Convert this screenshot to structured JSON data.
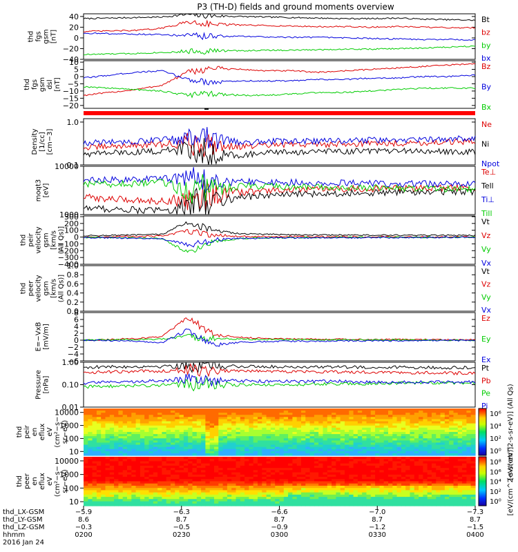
{
  "chart_data": {
    "title": "P3 (TH-D) fields and ground moments overview",
    "type": "line",
    "panels": [
      {
        "id": "fgs-gsm",
        "ylabel": [
          "thd",
          "fgs",
          "gsm",
          "[nT]"
        ],
        "ylim": [
          -40,
          45
        ],
        "ticks": [
          {
            "v": 40,
            "label": "40"
          },
          {
            "v": 20,
            "label": "20"
          },
          {
            "v": 0,
            "label": "0"
          },
          {
            "v": -20,
            "label": "−20"
          },
          {
            "v": -40,
            "label": "−40"
          }
        ],
        "series": [
          {
            "name": "Bt",
            "color": "#000000",
            "values": [
              36,
              37,
              38,
              39,
              44,
              41,
              40,
              39,
              38,
              37,
              36,
              36,
              37,
              35,
              34,
              33
            ]
          },
          {
            "name": "bz",
            "color": "#dd0000",
            "values": [
              12,
              13,
              14,
              18,
              30,
              26,
              24,
              23,
              22,
              21,
              21,
              20,
              21,
              20,
              19,
              19
            ]
          },
          {
            "name": "by",
            "color": "#00cc00",
            "values": [
              -31,
              -30,
              -29,
              -27,
              -25,
              -24,
              -24,
              -23,
              -23,
              -22,
              -21,
              -21,
              -20,
              -19,
              -17,
              -15
            ]
          },
          {
            "name": "bx",
            "color": "#0000dd",
            "values": [
              9,
              8,
              7,
              6,
              4,
              3,
              3,
              2,
              1,
              1,
              0,
              -1,
              -2,
              -3,
              -3,
              -4
            ]
          }
        ]
      },
      {
        "id": "fgs-dsl",
        "ylabel": [
          "thd",
          "fgs",
          "gsm",
          "dsl",
          "[nT]"
        ],
        "ylim": [
          -22,
          11
        ],
        "ticks": [
          {
            "v": 10,
            "label": "10"
          },
          {
            "v": 5,
            "label": "5"
          },
          {
            "v": 0,
            "label": "0"
          },
          {
            "v": -5,
            "label": "−5"
          },
          {
            "v": -10,
            "label": "−10"
          },
          {
            "v": -15,
            "label": "−15"
          },
          {
            "v": -20,
            "label": "−20"
          }
        ],
        "series": [
          {
            "name": "Bz",
            "color": "#dd0000",
            "values": [
              -13,
              -11,
              -9,
              -6,
              3,
              6,
              5,
              4,
              4,
              3,
              4,
              5,
              6,
              7,
              8,
              9
            ]
          },
          {
            "name": "By",
            "color": "#0000dd",
            "values": [
              -1,
              1,
              3,
              4,
              -2,
              -4,
              -3,
              -3,
              -3,
              -2,
              -2,
              -1,
              -1,
              0,
              0,
              1
            ]
          },
          {
            "name": "Bx",
            "color": "#00cc00",
            "values": [
              -7,
              -8,
              -9,
              -10,
              -13,
              -12,
              -13,
              -13,
              -12,
              -11,
              -11,
              -10,
              -9,
              -8,
              -8,
              -8
            ]
          }
        ]
      },
      {
        "id": "density",
        "ylabel": [
          "Density",
          "[1/cc]",
          "[cm−3]"
        ],
        "scale": "log",
        "ylim": [
          0.1,
          1.2
        ],
        "ticks": [
          {
            "v": 1.0,
            "label": "1.0"
          },
          {
            "v": 0.1,
            "label": "0.1"
          }
        ],
        "series": [
          {
            "name": "Ne",
            "color": "#dd0000",
            "values": [
              0.25,
              0.27,
              0.29,
              0.3,
              0.33,
              0.3,
              0.27,
              0.28,
              0.3,
              0.3,
              0.31,
              0.32,
              0.32,
              0.33,
              0.34,
              0.35
            ]
          },
          {
            "name": "Ni",
            "color": "#000000",
            "values": [
              0.18,
              0.19,
              0.2,
              0.21,
              0.24,
              0.18,
              0.17,
              0.19,
              0.2,
              0.2,
              0.21,
              0.21,
              0.21,
              0.21,
              0.2,
              0.2
            ]
          },
          {
            "name": "Npot",
            "color": "#0000dd",
            "values": [
              0.32,
              0.34,
              0.36,
              0.38,
              0.4,
              0.37,
              0.34,
              0.35,
              0.36,
              0.36,
              0.37,
              0.38,
              0.38,
              0.39,
              0.4,
              0.42
            ]
          }
        ]
      },
      {
        "id": "temperature",
        "ylabel": [
          "moqt3",
          "[eV]"
        ],
        "scale": "log",
        "ylim": [
          1000,
          10000
        ],
        "ticks": [
          {
            "v": 10000,
            "label": "10000"
          },
          {
            "v": 1000,
            "label": "1000"
          }
        ],
        "series": [
          {
            "name": "Te⊥",
            "color": "#dd0000",
            "values": [
              2300,
              2100,
              2000,
              1900,
              2100,
              2600,
              2900,
              3100,
              3200,
              3300,
              3400,
              3400,
              3500,
              3500,
              3600,
              3600
            ]
          },
          {
            "name": "Tell",
            "color": "#000000",
            "values": [
              1400,
              1300,
              1250,
              1200,
              1500,
              2000,
              2300,
              2500,
              2600,
              2700,
              2800,
              2800,
              2900,
              2900,
              3000,
              3000
            ]
          },
          {
            "name": "Ti⊥",
            "color": "#0000dd",
            "values": [
              5000,
              5200,
              5400,
              5600,
              5800,
              5200,
              4800,
              4700,
              4600,
              4500,
              4500,
              4400,
              4400,
              4300,
              4300,
              4200
            ]
          },
          {
            "name": "Till",
            "color": "#00cc00",
            "values": [
              4200,
              4300,
              4400,
              4600,
              3000,
              3600,
              3900,
              3800,
              3700,
              3700,
              3600,
              3600,
              3500,
              3500,
              3400,
              3400
            ]
          }
        ]
      },
      {
        "id": "ion-velocity",
        "ylabel": [
          "thd",
          "peir",
          "velocity",
          "gsm",
          "[km/s",
          "(All Qs)]"
        ],
        "ylim": [
          -400,
          310
        ],
        "ticks": [
          {
            "v": 300,
            "label": "300"
          },
          {
            "v": 200,
            "label": "200"
          },
          {
            "v": 100,
            "label": "100"
          },
          {
            "v": 0,
            "label": "0"
          },
          {
            "v": -100,
            "label": "−100"
          },
          {
            "v": -200,
            "label": "−200"
          },
          {
            "v": -300,
            "label": "−300"
          },
          {
            "v": -400,
            "label": "−400"
          }
        ],
        "series": [
          {
            "name": "Vt",
            "color": "#000000",
            "values": [
              20,
              25,
              30,
              40,
              220,
              90,
              50,
              40,
              35,
              30,
              30,
              28,
              26,
              25,
              25,
              24
            ]
          },
          {
            "name": "Vz",
            "color": "#dd0000",
            "values": [
              0,
              5,
              10,
              15,
              90,
              30,
              10,
              5,
              5,
              5,
              3,
              3,
              2,
              2,
              2,
              2
            ]
          },
          {
            "name": "Vy",
            "color": "#00cc00",
            "values": [
              -5,
              -8,
              -10,
              -20,
              -230,
              -60,
              -20,
              -10,
              -8,
              -6,
              -5,
              -5,
              -4,
              -4,
              -3,
              -3
            ]
          },
          {
            "name": "Vx",
            "color": "#0000dd",
            "values": [
              -10,
              -12,
              -15,
              -25,
              -120,
              -40,
              -20,
              -15,
              -12,
              -10,
              -10,
              -8,
              -8,
              -6,
              -6,
              -5
            ]
          }
        ]
      },
      {
        "id": "electron-velocity",
        "ylabel": [
          "thd",
          "peer",
          "velocity",
          "gsm",
          "[km/s",
          "(All Qs)]"
        ],
        "ylim": [
          0,
          1.0
        ],
        "ticks": [
          {
            "v": 1.0,
            "label": "1.0"
          },
          {
            "v": 0.8,
            "label": "0.8"
          },
          {
            "v": 0.6,
            "label": "0.6"
          },
          {
            "v": 0.4,
            "label": "0.4"
          },
          {
            "v": 0.2,
            "label": "0.2"
          },
          {
            "v": 0.0,
            "label": "0.0"
          }
        ],
        "series": [
          {
            "name": "Vt",
            "color": "#000000",
            "values": []
          },
          {
            "name": "Vz",
            "color": "#dd0000",
            "values": []
          },
          {
            "name": "Vy",
            "color": "#00cc00",
            "values": []
          },
          {
            "name": "Vx",
            "color": "#0000dd",
            "values": []
          }
        ]
      },
      {
        "id": "efield",
        "ylabel": [
          "E=−VxB",
          "[mV/m]"
        ],
        "ylim": [
          -6,
          8
        ],
        "ticks": [
          {
            "v": 8,
            "label": "8"
          },
          {
            "v": 6,
            "label": "6"
          },
          {
            "v": 4,
            "label": "4"
          },
          {
            "v": 2,
            "label": "2"
          },
          {
            "v": 0,
            "label": "0"
          },
          {
            "v": -2,
            "label": "−2"
          },
          {
            "v": -4,
            "label": "−4"
          },
          {
            "v": -6,
            "label": "−6"
          }
        ],
        "series": [
          {
            "name": "Ez",
            "color": "#dd0000",
            "values": [
              0,
              0.2,
              0.5,
              1.0,
              6.5,
              1.5,
              0.8,
              0.5,
              0.4,
              0.3,
              0.3,
              0.2,
              0.2,
              0.2,
              0.1,
              0.1
            ]
          },
          {
            "name": "Ey",
            "color": "#00cc00",
            "values": [
              0,
              0.1,
              0.2,
              0.3,
              1.0,
              0.5,
              0.3,
              0.2,
              0.2,
              0.1,
              0.1,
              0.1,
              0.1,
              0.0,
              0.0,
              0.0
            ]
          },
          {
            "name": "Ex",
            "color": "#0000dd",
            "values": [
              0,
              -0.1,
              -0.3,
              -0.8,
              3.0,
              -1.5,
              -0.6,
              -0.4,
              -0.3,
              -0.3,
              -0.2,
              -0.2,
              -0.2,
              -0.1,
              -0.1,
              -0.1
            ]
          }
        ]
      },
      {
        "id": "pressure",
        "ylabel": [
          "Pressure",
          "[nPa]"
        ],
        "scale": "log",
        "ylim": [
          0.01,
          1.0
        ],
        "ticks": [
          {
            "v": 1.0,
            "label": "1.00"
          },
          {
            "v": 0.1,
            "label": "0.10"
          },
          {
            "v": 0.01,
            "label": "0.01"
          }
        ],
        "series": [
          {
            "name": "Pt",
            "color": "#000000",
            "values": [
              0.6,
              0.62,
              0.64,
              0.66,
              0.7,
              0.67,
              0.65,
              0.64,
              0.63,
              0.62,
              0.61,
              0.6,
              0.6,
              0.59,
              0.58,
              0.57
            ]
          },
          {
            "name": "Pb",
            "color": "#dd0000",
            "values": [
              0.35,
              0.37,
              0.39,
              0.41,
              0.5,
              0.44,
              0.42,
              0.4,
              0.39,
              0.38,
              0.37,
              0.36,
              0.35,
              0.34,
              0.33,
              0.32
            ]
          },
          {
            "name": "Pe",
            "color": "#00cc00",
            "values": [
              0.08,
              0.085,
              0.09,
              0.095,
              0.11,
              0.1,
              0.1,
              0.1,
              0.1,
              0.11,
              0.11,
              0.11,
              0.12,
              0.12,
              0.12,
              0.12
            ]
          },
          {
            "name": "Pi",
            "color": "#0000dd",
            "values": [
              0.12,
              0.13,
              0.14,
              0.15,
              0.18,
              0.16,
              0.15,
              0.14,
              0.14,
              0.14,
              0.14,
              0.13,
              0.13,
              0.13,
              0.13,
              0.13
            ]
          }
        ]
      },
      {
        "id": "ion-eflux",
        "type": "heatmap",
        "ylabel": [
          "thd",
          "peir",
          "en",
          "eflux",
          "eV",
          "(cm²−s−",
          "sr−eV)"
        ],
        "ticks": [
          {
            "v": 10000,
            "label": "10000"
          },
          {
            "v": 1000,
            "label": "1000"
          },
          {
            "v": 100,
            "label": "100"
          },
          {
            "v": 10,
            "label": "10"
          }
        ],
        "colorbar_label": "[eV/(cm^2-s-sr-eV)] (All Qs)",
        "colorbar_ticks": [
          "10⁶",
          "10⁴",
          "10²",
          "10⁰"
        ]
      },
      {
        "id": "electron-eflux",
        "type": "heatmap",
        "ylabel": [
          "thd",
          "peer",
          "en",
          "eflux",
          "eV",
          "(cm²−s−",
          "sr−eV)"
        ],
        "ticks": [
          {
            "v": 10000,
            "label": "10000"
          },
          {
            "v": 1000,
            "label": "1000"
          },
          {
            "v": 100,
            "label": "100"
          },
          {
            "v": 10,
            "label": "10"
          }
        ],
        "colorbar_label": "[eV/(cm^2-s-sr-eV)]",
        "colorbar_ticks": [
          "10⁸",
          "10⁶",
          "10⁴",
          "10²",
          "10⁰"
        ]
      }
    ],
    "x_axis": {
      "rows": [
        {
          "label": "thd_LX-GSM",
          "values": [
            "−5.9",
            "−6.3",
            "−6.6",
            "−7.0",
            "−7.3"
          ]
        },
        {
          "label": "thd_LY-GSM",
          "values": [
            "8.6",
            "8.7",
            "8.7",
            "8.7",
            "8.7"
          ]
        },
        {
          "label": "thd_LZ-GSM",
          "values": [
            "−0.3",
            "−0.5",
            "−0.9",
            "−1.2",
            "−1.5"
          ]
        },
        {
          "label": "hhmm",
          "values": [
            "0200",
            "0230",
            "0300",
            "0330",
            "0400"
          ]
        }
      ],
      "date": "2016 Jan 24"
    }
  }
}
